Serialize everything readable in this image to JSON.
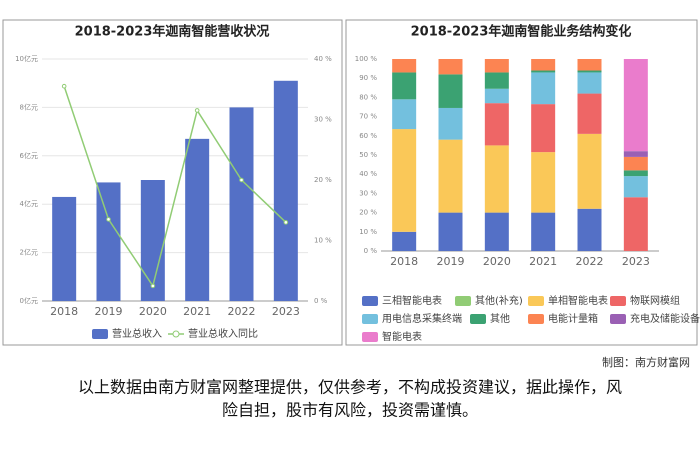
{
  "chart_data": [
    {
      "type": "combo",
      "title": "2018-2023年迦南智能营收状况",
      "categories": [
        "2018",
        "2019",
        "2020",
        "2021",
        "2022",
        "2023"
      ],
      "series": [
        {
          "name": "营业总收入",
          "type": "bar",
          "color": "#5470c6",
          "values": [
            4.3,
            4.9,
            5.0,
            6.7,
            8.0,
            9.1
          ]
        },
        {
          "name": "营业总收入同比",
          "type": "line",
          "axis": "y2",
          "color": "#91cc75",
          "values": [
            35.5,
            13.5,
            2.5,
            31.5,
            20,
            13
          ]
        }
      ],
      "ylim": [
        0,
        10
      ],
      "yticks": [
        {
          "value": 0,
          "label": "0亿元"
        },
        {
          "value": 2,
          "label": "2亿元"
        },
        {
          "value": 4,
          "label": "4亿元"
        },
        {
          "value": 6,
          "label": "6亿元"
        },
        {
          "value": 8,
          "label": "8亿元"
        },
        {
          "value": 10,
          "label": "10亿元"
        }
      ],
      "y2lim": [
        0,
        40
      ],
      "y2ticks": [
        {
          "value": 0,
          "label": "0 %"
        },
        {
          "value": 10,
          "label": "10 %"
        },
        {
          "value": 20,
          "label": "20 %"
        },
        {
          "value": 30,
          "label": "30 %"
        },
        {
          "value": 40,
          "label": "40 %"
        }
      ],
      "legend": "bottom"
    },
    {
      "type": "stacked_bar",
      "title": "2018-2023年迦南智能业务结构变化",
      "categories": [
        "2018",
        "2019",
        "2020",
        "2021",
        "2022",
        "2023"
      ],
      "series": [
        {
          "name": "三相智能电表",
          "color": "#5470c6",
          "values": [
            10,
            20,
            20,
            20,
            22,
            0
          ]
        },
        {
          "name": "其他(补充)",
          "color": "#91cc75",
          "values": [
            0,
            0,
            0,
            0,
            0,
            0
          ]
        },
        {
          "name": "单相智能电表",
          "color": "#fac858",
          "values": [
            53.5,
            38,
            35,
            31.5,
            39,
            0
          ]
        },
        {
          "name": "物联网模组",
          "color": "#ee6666",
          "values": [
            0,
            0,
            22,
            25,
            21,
            28
          ]
        },
        {
          "name": "用电信息采集终端",
          "color": "#73c0de",
          "values": [
            15.5,
            16.5,
            7.5,
            16.5,
            11,
            11
          ]
        },
        {
          "name": "其他",
          "color": "#3ba272",
          "values": [
            14,
            17.5,
            8.5,
            1,
            1,
            3
          ]
        },
        {
          "name": "电能计量箱",
          "color": "#fc8452",
          "values": [
            7,
            8,
            7,
            6,
            6,
            7
          ]
        },
        {
          "name": "充电及储能设备",
          "color": "#9a60b4",
          "values": [
            0,
            0,
            0,
            0,
            0,
            3
          ]
        },
        {
          "name": "智能电表",
          "color": "#ea7ccc",
          "values": [
            0,
            0,
            0,
            0,
            0,
            48
          ]
        }
      ],
      "ylim": [
        0,
        100
      ],
      "yticks": [
        {
          "value": 0,
          "label": "0 %"
        },
        {
          "value": 10,
          "label": "10 %"
        },
        {
          "value": 20,
          "label": "20 %"
        },
        {
          "value": 30,
          "label": "30 %"
        },
        {
          "value": 40,
          "label": "40 %"
        },
        {
          "value": 50,
          "label": "50 %"
        },
        {
          "value": 60,
          "label": "60 %"
        },
        {
          "value": 70,
          "label": "70 %"
        },
        {
          "value": 80,
          "label": "80 %"
        },
        {
          "value": 90,
          "label": "90 %"
        },
        {
          "value": 100,
          "label": "100 %"
        }
      ],
      "legend": "bottom"
    }
  ],
  "credit": "制图：南方财富网",
  "disclaimer": [
    "以上数据由南方财富网整理提供，仅供参考，不构成投资建议，据此操作，风",
    "险自担，股市有风险，投资需谨慎。"
  ]
}
